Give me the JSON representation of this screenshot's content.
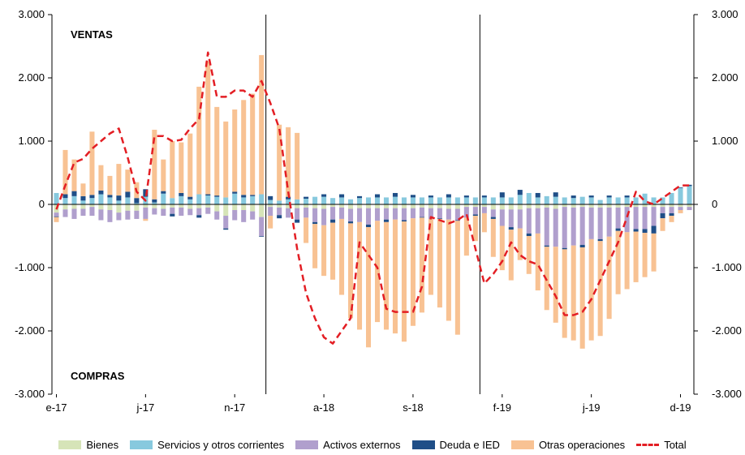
{
  "chart_data": {
    "type": "bar",
    "annotations": {
      "top": "VENTAS",
      "bottom": "COMPRAS"
    },
    "ylim": [
      -3000,
      3000
    ],
    "yticks": [
      "-3.000",
      "-2.000",
      "-1.000",
      "0",
      "1.000",
      "2.000",
      "3.000"
    ],
    "ytick_values": [
      -3000,
      -2000,
      -1000,
      0,
      1000,
      2000,
      3000
    ],
    "x_tick_labels": [
      {
        "index": 0,
        "label": "e-17"
      },
      {
        "index": 10,
        "label": "j-17"
      },
      {
        "index": 20,
        "label": "n-17"
      },
      {
        "index": 30,
        "label": "a-18"
      },
      {
        "index": 40,
        "label": "s-18"
      },
      {
        "index": 50,
        "label": "f-19"
      },
      {
        "index": 60,
        "label": "j-19"
      },
      {
        "index": 70,
        "label": "d-19"
      }
    ],
    "vertical_lines_after_index": [
      23,
      47
    ],
    "legend_position": "bottom",
    "series": [
      {
        "name": "Bienes",
        "color": "#d6e4b8",
        "type": "bar",
        "values": [
          -130,
          -80,
          -70,
          -70,
          -40,
          -80,
          -90,
          -130,
          -100,
          -100,
          -50,
          -60,
          -70,
          -50,
          -50,
          -70,
          -60,
          -50,
          -110,
          -180,
          -90,
          -90,
          -110,
          -200,
          -40,
          -50,
          -60,
          -60,
          -50,
          -60,
          -70,
          -40,
          -50,
          -70,
          -60,
          -60,
          -60,
          -60,
          -60,
          -60,
          -60,
          -50,
          -60,
          -60,
          -70,
          -70,
          -40,
          -40,
          -40,
          -80,
          -80,
          -80,
          -80,
          -60,
          -60,
          -50,
          -70,
          -40,
          -50,
          -40,
          -50,
          -50,
          -50,
          -50,
          -40,
          -40,
          -40,
          -40,
          -40,
          -40,
          -40,
          -40
        ]
      },
      {
        "name": "Servicios y otros corrientes",
        "color": "#87c9de",
        "type": "bar",
        "values": [
          180,
          100,
          130,
          60,
          100,
          160,
          110,
          60,
          110,
          20,
          120,
          30,
          170,
          100,
          130,
          80,
          160,
          140,
          120,
          110,
          170,
          110,
          130,
          160,
          70,
          60,
          80,
          80,
          90,
          120,
          120,
          100,
          110,
          80,
          100,
          110,
          110,
          110,
          120,
          110,
          110,
          110,
          110,
          110,
          110,
          110,
          110,
          110,
          110,
          110,
          110,
          110,
          150,
          180,
          110,
          130,
          120,
          110,
          100,
          120,
          110,
          70,
          110,
          110,
          110,
          110,
          170,
          110,
          110,
          180,
          260,
          290
        ]
      },
      {
        "name": "Activos externos",
        "color": "#b09fcd",
        "type": "bar",
        "values": [
          -60,
          -120,
          -160,
          -110,
          -140,
          -170,
          -190,
          -120,
          -140,
          -130,
          -180,
          -100,
          -110,
          -100,
          -130,
          -100,
          -110,
          -100,
          -130,
          -200,
          -160,
          -190,
          -130,
          -300,
          -140,
          -120,
          -150,
          -180,
          -160,
          -220,
          -260,
          -200,
          -180,
          -200,
          -220,
          -260,
          -200,
          -180,
          -180,
          -190,
          -160,
          -150,
          -170,
          -160,
          -170,
          -180,
          -170,
          -120,
          -100,
          -120,
          -260,
          -280,
          -300,
          -400,
          -400,
          -600,
          -600,
          -650,
          -600,
          -600,
          -500,
          -500,
          -460,
          -330,
          -400,
          -350,
          -350,
          -300,
          -100,
          -100,
          -50,
          -50
        ]
      },
      {
        "name": "Deuda e IED",
        "color": "#1f4e87",
        "type": "bar",
        "values": [
          -10,
          60,
          80,
          70,
          50,
          60,
          40,
          80,
          90,
          80,
          120,
          50,
          40,
          -40,
          50,
          40,
          -40,
          20,
          20,
          -20,
          30,
          40,
          20,
          -10,
          60,
          -50,
          40,
          -50,
          30,
          -30,
          40,
          -50,
          50,
          -30,
          30,
          -40,
          50,
          -40,
          60,
          -20,
          40,
          -10,
          30,
          -10,
          50,
          -10,
          30,
          -20,
          30,
          -30,
          80,
          -40,
          80,
          -40,
          70,
          -20,
          70,
          -20,
          40,
          -40,
          30,
          -30,
          30,
          -40,
          30,
          -40,
          -60,
          -120,
          -80,
          -40,
          10,
          20
        ]
      },
      {
        "name": "Otras operaciones",
        "color": "#f8c293",
        "type": "bar",
        "values": [
          -80,
          700,
          500,
          200,
          1000,
          400,
          300,
          500,
          350,
          250,
          -30,
          1100,
          500,
          900,
          800,
          1000,
          1700,
          2100,
          1400,
          1200,
          1300,
          1500,
          1600,
          2200,
          -200,
          1200,
          1100,
          1050,
          -400,
          -700,
          -800,
          -900,
          -1200,
          -1500,
          -1700,
          -1900,
          -1600,
          -1700,
          -1800,
          -1900,
          -1700,
          -1500,
          -1200,
          -1400,
          -1600,
          -1800,
          -600,
          -400,
          -300,
          -600,
          -700,
          -800,
          -500,
          -600,
          -900,
          -1000,
          -1200,
          -1400,
          -1500,
          -1600,
          -1600,
          -1500,
          -1300,
          -1000,
          -900,
          -800,
          -700,
          -600,
          -200,
          -100,
          -50,
          0
        ]
      },
      {
        "name": "Total",
        "color": "#e31e24",
        "type": "line",
        "values": [
          -80,
          300,
          660,
          720,
          880,
          1000,
          1120,
          1200,
          740,
          200,
          60,
          1080,
          1080,
          1000,
          1020,
          1200,
          1350,
          2400,
          1700,
          1700,
          1800,
          1800,
          1700,
          1950,
          1600,
          1200,
          200,
          -700,
          -1400,
          -1800,
          -2100,
          -2200,
          -2000,
          -1800,
          -600,
          -800,
          -1000,
          -1650,
          -1700,
          -1700,
          -1700,
          -1300,
          -200,
          -250,
          -300,
          -250,
          -150,
          -700,
          -1250,
          -1100,
          -900,
          -600,
          -800,
          -900,
          -950,
          -1200,
          -1450,
          -1750,
          -1750,
          -1700,
          -1500,
          -1200,
          -900,
          -600,
          -200,
          200,
          50,
          0,
          100,
          200,
          300,
          300
        ]
      }
    ]
  },
  "legend": {
    "bienes": "Bienes",
    "servicios": "Servicios y otros corrientes",
    "activos": "Activos externos",
    "deuda": "Deuda e IED",
    "otras": "Otras operaciones",
    "total": "Total"
  },
  "colors": {
    "bienes": "#d6e4b8",
    "servicios": "#87c9de",
    "activos": "#b09fcd",
    "deuda": "#1f4e87",
    "otras": "#f8c293",
    "total": "#e31e24"
  }
}
